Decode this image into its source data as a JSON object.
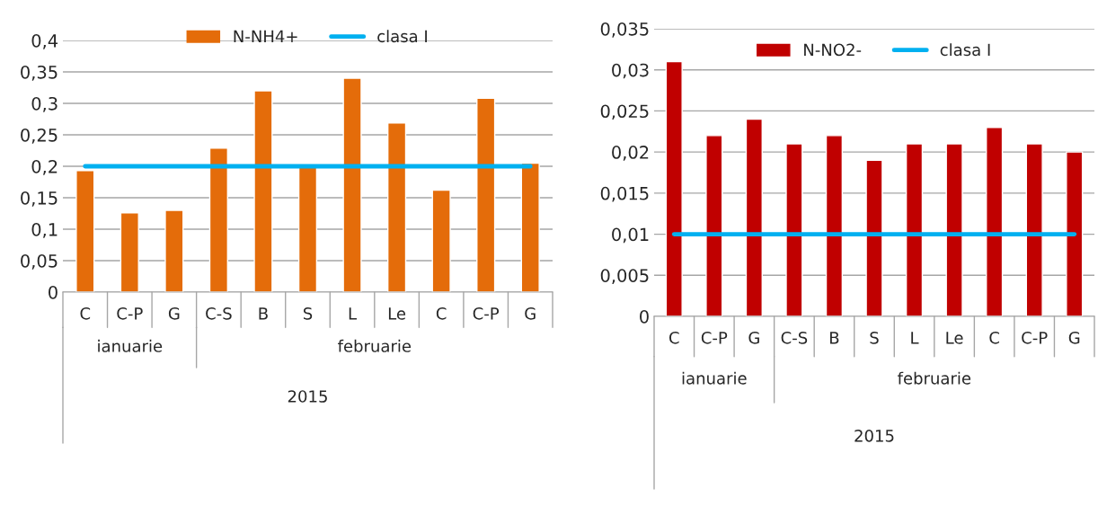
{
  "chart_data": [
    {
      "type": "bar",
      "categories": [
        "C",
        "C-P",
        "G",
        "C-S",
        "B",
        "S",
        "L",
        "Le",
        "C",
        "C-P",
        "G"
      ],
      "series": [
        {
          "name": "N-NH4+",
          "color": "#e46c0a",
          "values": [
            0.193,
            0.126,
            0.13,
            0.229,
            0.32,
            0.2,
            0.34,
            0.269,
            0.162,
            0.308,
            0.205
          ]
        },
        {
          "name": "clasa I",
          "type": "line",
          "color": "#00b0f0",
          "values": [
            0.2,
            0.2,
            0.2,
            0.2,
            0.2,
            0.2,
            0.2,
            0.2,
            0.2,
            0.2,
            0.2
          ]
        }
      ],
      "ylim": [
        0,
        0.4
      ],
      "yticks": [
        0,
        {
          "value": 0.05,
          "label": "0,05"
        },
        {
          "value": 0.1,
          "label": "0,1"
        },
        {
          "value": 0.15,
          "label": "0,15"
        },
        {
          "value": 0.2,
          "label": "0,2"
        },
        {
          "value": 0.25,
          "label": "0,25"
        },
        {
          "value": 0.3,
          "label": "0,3"
        },
        {
          "value": 0.35,
          "label": "0,35"
        },
        {
          "value": 0.4,
          "label": "0,4"
        }
      ],
      "grid": "y",
      "legend": "top",
      "annotations": [
        "ianuarie",
        "februarie",
        "2015"
      ]
    },
    {
      "type": "bar",
      "categories": [
        "C",
        "C-P",
        "G",
        "C-S",
        "B",
        "S",
        "L",
        "Le",
        "C",
        "C-P",
        "G"
      ],
      "series": [
        {
          "name": "N-NO2-",
          "color": "#c00000",
          "values": [
            0.031,
            0.022,
            0.024,
            0.021,
            0.022,
            0.019,
            0.021,
            0.021,
            0.023,
            0.021,
            0.02
          ]
        },
        {
          "name": "clasa I",
          "type": "line",
          "color": "#00b0f0",
          "values": [
            0.01,
            0.01,
            0.01,
            0.01,
            0.01,
            0.01,
            0.01,
            0.01,
            0.01,
            0.01,
            0.01
          ]
        }
      ],
      "ylim": [
        0,
        0.035
      ],
      "yticks": [
        0,
        {
          "value": 0.005,
          "label": "0,005"
        },
        {
          "value": 0.01,
          "label": "0,01"
        },
        {
          "value": 0.015,
          "label": "0,015"
        },
        {
          "value": 0.02,
          "label": "0,02"
        },
        {
          "value": 0.025,
          "label": "0,025"
        },
        {
          "value": 0.03,
          "label": "0,03"
        },
        {
          "value": 0.035,
          "label": "0,035"
        }
      ],
      "grid": "y",
      "legend": "top",
      "annotations": [
        "ianuarie",
        "februarie",
        "2015"
      ]
    }
  ]
}
